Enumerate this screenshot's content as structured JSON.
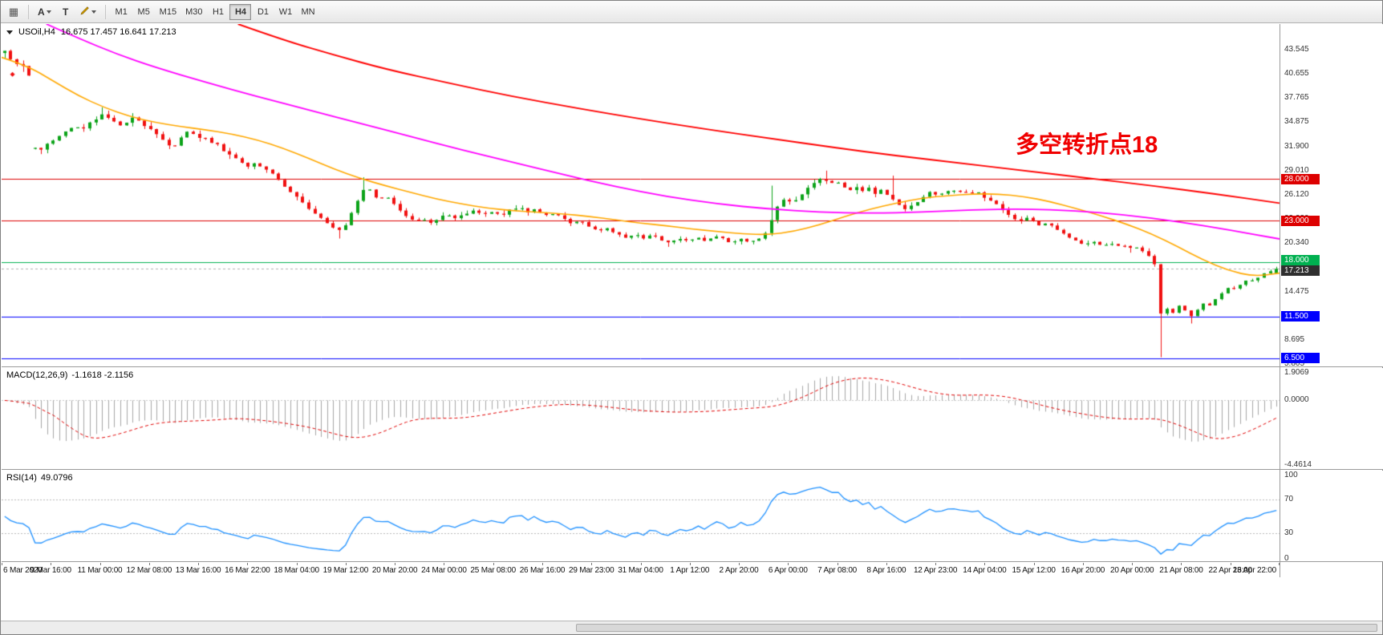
{
  "toolbar": {
    "tools": [
      {
        "label": "A"
      },
      {
        "label": "T"
      }
    ],
    "timeframes": [
      "M1",
      "M5",
      "M15",
      "M30",
      "H1",
      "H4",
      "D1",
      "W1",
      "MN"
    ],
    "active_timeframe": "H4"
  },
  "chart": {
    "title": {
      "symbol_period": "USOil,H4",
      "ohlc": "16.675 17.457 16.641 17.213"
    }
  },
  "chart_data": {
    "type": "candlestick",
    "symbol": "USOil",
    "period": "H4",
    "bars": 210,
    "last_ohlc": {
      "o": 16.675,
      "h": 17.457,
      "l": 16.641,
      "c": 17.213
    },
    "colors": {
      "up": "#0ca319",
      "down": "#f01010",
      "ma_red": "#ff0000",
      "ma_magenta": "#ff00ff",
      "ma_orange": "#ffa800",
      "macd_hist": "#a6a6a6",
      "macd_signal": "#e00000",
      "rsi": "#1e90ff",
      "level_red": "#dd0000",
      "level_green": "#00b050",
      "level_blue": "#0000ff",
      "current_tag": "#2f2f2f"
    },
    "price_axis": {
      "max": 46.6,
      "min": 5.4,
      "labels": [
        "43.545",
        "40.655",
        "37.765",
        "34.875",
        "31.900",
        "29.010",
        "26.120",
        "23.230",
        "20.340",
        "17.450",
        "14.475",
        "11.585",
        "8.695",
        "5.805"
      ]
    },
    "levels": [
      {
        "value": 28.0,
        "label": "28.000",
        "line_color": "#dd0000",
        "tag_bg": "#dd0000",
        "dashed": false
      },
      {
        "value": 23.0,
        "label": "23.000",
        "line_color": "#dd0000",
        "tag_bg": "#dd0000",
        "dashed": false
      },
      {
        "value": 18.0,
        "label": "18.000",
        "line_color": "#00b050",
        "tag_bg": "#00b050",
        "dashed": false
      },
      {
        "value": 17.213,
        "label": "17.213",
        "line_color": "#b0b0b0",
        "tag_bg": "#2f2f2f",
        "dashed": true
      },
      {
        "value": 11.5,
        "label": "11.500",
        "line_color": "#0000ff",
        "tag_bg": "#0000ff",
        "dashed": false
      },
      {
        "value": 6.5,
        "label": "6.500",
        "line_color": "#0000ff",
        "tag_bg": "#0000ff",
        "dashed": false
      }
    ],
    "gap_at": 0.023,
    "close_path": [
      [
        0.0,
        43.2
      ],
      [
        0.004,
        42.4
      ],
      [
        0.009,
        41.9
      ],
      [
        0.014,
        41.4
      ],
      [
        0.019,
        41.0
      ],
      [
        0.0215,
        31.9
      ],
      [
        0.026,
        31.4
      ],
      [
        0.031,
        31.9
      ],
      [
        0.036,
        32.4
      ],
      [
        0.042,
        33.1
      ],
      [
        0.048,
        33.7
      ],
      [
        0.054,
        34.3
      ],
      [
        0.06,
        33.9
      ],
      [
        0.066,
        34.6
      ],
      [
        0.072,
        35.2
      ],
      [
        0.078,
        35.8
      ],
      [
        0.084,
        35.1
      ],
      [
        0.09,
        34.4
      ],
      [
        0.096,
        34.9
      ],
      [
        0.102,
        35.4
      ],
      [
        0.108,
        34.7
      ],
      [
        0.114,
        34.1
      ],
      [
        0.12,
        33.3
      ],
      [
        0.126,
        32.4
      ],
      [
        0.132,
        31.6
      ],
      [
        0.137,
        32.7
      ],
      [
        0.142,
        33.8
      ],
      [
        0.148,
        33.5
      ],
      [
        0.154,
        33.0
      ],
      [
        0.16,
        32.7
      ],
      [
        0.166,
        32.2
      ],
      [
        0.172,
        31.5
      ],
      [
        0.178,
        30.8
      ],
      [
        0.184,
        30.2
      ],
      [
        0.19,
        29.5
      ],
      [
        0.196,
        29.9
      ],
      [
        0.202,
        29.5
      ],
      [
        0.208,
        28.9
      ],
      [
        0.214,
        28.1
      ],
      [
        0.22,
        27.2
      ],
      [
        0.226,
        26.4
      ],
      [
        0.232,
        25.6
      ],
      [
        0.238,
        24.7
      ],
      [
        0.244,
        23.8
      ],
      [
        0.25,
        23.1
      ],
      [
        0.256,
        22.4
      ],
      [
        0.262,
        21.7
      ],
      [
        0.268,
        22.5
      ],
      [
        0.274,
        24.3
      ],
      [
        0.279,
        25.9
      ],
      [
        0.284,
        27.2
      ],
      [
        0.289,
        26.3
      ],
      [
        0.294,
        25.6
      ],
      [
        0.299,
        26.0
      ],
      [
        0.305,
        25.2
      ],
      [
        0.311,
        24.3
      ],
      [
        0.317,
        23.5
      ],
      [
        0.323,
        22.8
      ],
      [
        0.329,
        23.3
      ],
      [
        0.335,
        22.7
      ],
      [
        0.341,
        23.2
      ],
      [
        0.348,
        23.8
      ],
      [
        0.355,
        23.3
      ],
      [
        0.362,
        23.8
      ],
      [
        0.369,
        24.2
      ],
      [
        0.376,
        23.7
      ],
      [
        0.383,
        24.1
      ],
      [
        0.39,
        23.6
      ],
      [
        0.397,
        24.2
      ],
      [
        0.404,
        24.7
      ],
      [
        0.411,
        24.0
      ],
      [
        0.418,
        24.4
      ],
      [
        0.425,
        23.6
      ],
      [
        0.432,
        23.9
      ],
      [
        0.439,
        23.2
      ],
      [
        0.446,
        22.6
      ],
      [
        0.453,
        23.0
      ],
      [
        0.46,
        22.3
      ],
      [
        0.467,
        21.7
      ],
      [
        0.474,
        22.1
      ],
      [
        0.481,
        21.4
      ],
      [
        0.488,
        21.0
      ],
      [
        0.495,
        21.4
      ],
      [
        0.502,
        20.9
      ],
      [
        0.509,
        21.3
      ],
      [
        0.516,
        20.7
      ],
      [
        0.523,
        20.3
      ],
      [
        0.53,
        20.9
      ],
      [
        0.537,
        20.5
      ],
      [
        0.544,
        21.0
      ],
      [
        0.551,
        20.6
      ],
      [
        0.558,
        21.1
      ],
      [
        0.565,
        20.8
      ],
      [
        0.572,
        20.3
      ],
      [
        0.579,
        20.8
      ],
      [
        0.586,
        20.4
      ],
      [
        0.593,
        20.9
      ],
      [
        0.599,
        21.5
      ],
      [
        0.604,
        23.6
      ],
      [
        0.609,
        25.0
      ],
      [
        0.614,
        25.6
      ],
      [
        0.619,
        25.1
      ],
      [
        0.624,
        25.8
      ],
      [
        0.629,
        26.6
      ],
      [
        0.634,
        27.3
      ],
      [
        0.639,
        27.9
      ],
      [
        0.644,
        28.2
      ],
      [
        0.649,
        27.4
      ],
      [
        0.654,
        27.9
      ],
      [
        0.659,
        27.2
      ],
      [
        0.664,
        26.6
      ],
      [
        0.669,
        27.1
      ],
      [
        0.674,
        26.5
      ],
      [
        0.679,
        26.9
      ],
      [
        0.684,
        26.3
      ],
      [
        0.689,
        26.7
      ],
      [
        0.694,
        26.1
      ],
      [
        0.699,
        25.5
      ],
      [
        0.704,
        24.9
      ],
      [
        0.709,
        24.3
      ],
      [
        0.714,
        24.8
      ],
      [
        0.719,
        25.5
      ],
      [
        0.724,
        26.1
      ],
      [
        0.729,
        26.5
      ],
      [
        0.734,
        26.0
      ],
      [
        0.739,
        26.4
      ],
      [
        0.744,
        26.8
      ],
      [
        0.749,
        26.3
      ],
      [
        0.754,
        26.7
      ],
      [
        0.759,
        26.2
      ],
      [
        0.764,
        26.5
      ],
      [
        0.769,
        26.0
      ],
      [
        0.774,
        25.5
      ],
      [
        0.779,
        25.0
      ],
      [
        0.784,
        24.4
      ],
      [
        0.789,
        23.8
      ],
      [
        0.794,
        23.3
      ],
      [
        0.799,
        22.9
      ],
      [
        0.804,
        23.3
      ],
      [
        0.809,
        22.8
      ],
      [
        0.814,
        22.4
      ],
      [
        0.819,
        22.8
      ],
      [
        0.824,
        22.2
      ],
      [
        0.829,
        21.8
      ],
      [
        0.834,
        21.3
      ],
      [
        0.839,
        20.9
      ],
      [
        0.844,
        20.5
      ],
      [
        0.849,
        20.1
      ],
      [
        0.854,
        20.5
      ],
      [
        0.859,
        20.2
      ],
      [
        0.864,
        19.9
      ],
      [
        0.869,
        20.3
      ],
      [
        0.874,
        19.9
      ],
      [
        0.879,
        20.2
      ],
      [
        0.884,
        19.6
      ],
      [
        0.889,
        19.9
      ],
      [
        0.894,
        19.4
      ],
      [
        0.899,
        18.9
      ],
      [
        0.904,
        18.2
      ],
      [
        0.9085,
        11.7
      ],
      [
        0.913,
        12.5
      ],
      [
        0.918,
        11.8
      ],
      [
        0.923,
        12.8
      ],
      [
        0.928,
        12.2
      ],
      [
        0.933,
        11.5
      ],
      [
        0.938,
        12.3
      ],
      [
        0.943,
        13.1
      ],
      [
        0.948,
        12.8
      ],
      [
        0.953,
        13.7
      ],
      [
        0.958,
        14.5
      ],
      [
        0.963,
        15.1
      ],
      [
        0.968,
        14.7
      ],
      [
        0.973,
        15.5
      ],
      [
        0.978,
        16.0
      ],
      [
        0.983,
        15.7
      ],
      [
        0.988,
        16.4
      ],
      [
        0.993,
        16.9
      ],
      [
        1.0,
        17.2
      ]
    ],
    "spikes": [
      {
        "frac": 0.078,
        "high": 36.6
      },
      {
        "frac": 0.102,
        "high": 35.9
      },
      {
        "frac": 0.262,
        "low": 20.85
      },
      {
        "frac": 0.284,
        "high": 28.2
      },
      {
        "frac": 0.523,
        "low": 19.85
      },
      {
        "frac": 0.604,
        "high": 27.2
      },
      {
        "frac": 0.644,
        "high": 29.0
      },
      {
        "frac": 0.699,
        "high": 28.4
      },
      {
        "frac": 0.887,
        "low": 19.15
      },
      {
        "frac": 0.9085,
        "low": 6.6
      },
      {
        "frac": 0.933,
        "low": 10.65
      }
    ],
    "overlays": {
      "red_ma": [
        [
          0.185,
          46.6
        ],
        [
          0.22,
          44.7
        ],
        [
          0.26,
          42.9
        ],
        [
          0.3,
          41.2
        ],
        [
          0.35,
          39.5
        ],
        [
          0.4,
          37.9
        ],
        [
          0.45,
          36.5
        ],
        [
          0.5,
          35.2
        ],
        [
          0.55,
          34.0
        ],
        [
          0.6,
          32.9
        ],
        [
          0.65,
          31.8
        ],
        [
          0.7,
          30.8
        ],
        [
          0.75,
          29.9
        ],
        [
          0.8,
          29.0
        ],
        [
          0.85,
          28.1
        ],
        [
          0.9,
          27.2
        ],
        [
          0.95,
          26.2
        ],
        [
          1.0,
          25.1
        ]
      ],
      "magenta_ma": [
        [
          0.035,
          46.6
        ],
        [
          0.06,
          44.9
        ],
        [
          0.09,
          43.0
        ],
        [
          0.12,
          41.4
        ],
        [
          0.16,
          39.6
        ],
        [
          0.2,
          37.9
        ],
        [
          0.24,
          36.3
        ],
        [
          0.28,
          34.7
        ],
        [
          0.32,
          33.1
        ],
        [
          0.36,
          31.5
        ],
        [
          0.4,
          30.0
        ],
        [
          0.44,
          28.5
        ],
        [
          0.48,
          27.1
        ],
        [
          0.52,
          25.9
        ],
        [
          0.56,
          25.0
        ],
        [
          0.6,
          24.4
        ],
        [
          0.64,
          24.0
        ],
        [
          0.68,
          23.9
        ],
        [
          0.72,
          24.0
        ],
        [
          0.76,
          24.3
        ],
        [
          0.8,
          24.4
        ],
        [
          0.84,
          24.2
        ],
        [
          0.88,
          23.7
        ],
        [
          0.92,
          22.9
        ],
        [
          0.96,
          21.9
        ],
        [
          1.0,
          20.8
        ]
      ],
      "orange_ma": [
        [
          0.0,
          42.6
        ],
        [
          0.02,
          41.6
        ],
        [
          0.04,
          39.8
        ],
        [
          0.06,
          38.0
        ],
        [
          0.08,
          36.6
        ],
        [
          0.1,
          35.5
        ],
        [
          0.12,
          34.8
        ],
        [
          0.14,
          34.3
        ],
        [
          0.16,
          33.9
        ],
        [
          0.18,
          33.4
        ],
        [
          0.2,
          32.7
        ],
        [
          0.22,
          31.7
        ],
        [
          0.24,
          30.5
        ],
        [
          0.26,
          29.2
        ],
        [
          0.28,
          28.1
        ],
        [
          0.3,
          27.2
        ],
        [
          0.32,
          26.4
        ],
        [
          0.34,
          25.6
        ],
        [
          0.36,
          25.0
        ],
        [
          0.38,
          24.5
        ],
        [
          0.4,
          24.2
        ],
        [
          0.42,
          24.0
        ],
        [
          0.44,
          23.8
        ],
        [
          0.46,
          23.5
        ],
        [
          0.48,
          23.1
        ],
        [
          0.5,
          22.7
        ],
        [
          0.52,
          22.4
        ],
        [
          0.54,
          22.0
        ],
        [
          0.56,
          21.7
        ],
        [
          0.58,
          21.4
        ],
        [
          0.6,
          21.3
        ],
        [
          0.62,
          21.7
        ],
        [
          0.64,
          22.5
        ],
        [
          0.66,
          23.5
        ],
        [
          0.68,
          24.4
        ],
        [
          0.7,
          25.1
        ],
        [
          0.72,
          25.7
        ],
        [
          0.74,
          26.0
        ],
        [
          0.76,
          26.2
        ],
        [
          0.78,
          26.2
        ],
        [
          0.8,
          25.9
        ],
        [
          0.82,
          25.3
        ],
        [
          0.84,
          24.5
        ],
        [
          0.86,
          23.6
        ],
        [
          0.88,
          22.6
        ],
        [
          0.9,
          21.4
        ],
        [
          0.92,
          19.9
        ],
        [
          0.94,
          18.3
        ],
        [
          0.96,
          17.0
        ],
        [
          0.98,
          16.3
        ],
        [
          1.0,
          16.7
        ]
      ]
    },
    "markers": [
      {
        "frac": 0.0085,
        "price": 40.55
      }
    ],
    "time_labels": [
      "6 Mar 2020",
      "9 Mar 16:00",
      "11 Mar 00:00",
      "12 Mar 08:00",
      "13 Mar 16:00",
      "16 Mar 22:00",
      "18 Mar 04:00",
      "19 Mar 12:00",
      "20 Mar 20:00",
      "24 Mar 00:00",
      "25 Mar 08:00",
      "26 Mar 16:00",
      "29 Mar 23:00",
      "31 Mar 04:00",
      "1 Apr 12:00",
      "2 Apr 20:00",
      "6 Apr 00:00",
      "7 Apr 08:00",
      "8 Apr 16:00",
      "12 Apr 23:00",
      "14 Apr 04:00",
      "15 Apr 12:00",
      "16 Apr 20:00",
      "20 Apr 00:00",
      "21 Apr 08:00",
      "22 Apr 16:00",
      "23 Apr 22:00"
    ],
    "macd": {
      "label": "MACD(12,26,9)",
      "values_text": "-1.1618 -2.1156",
      "fast": 12,
      "slow": 26,
      "signal": 9,
      "max": 1.9069,
      "min": -4.4614,
      "axis": [
        {
          "v": 1.9069,
          "t": "1.9069"
        },
        {
          "v": 0,
          "t": "0.0000"
        },
        {
          "v": -4.4614,
          "t": "-4.4614"
        }
      ]
    },
    "rsi": {
      "label": "RSI(14)",
      "value_text": "49.0796",
      "period": 14,
      "levels": [
        70,
        30
      ],
      "axis": [
        {
          "v": 100,
          "t": "100"
        },
        {
          "v": 70,
          "t": "70"
        },
        {
          "v": 30,
          "t": "30"
        },
        {
          "v": 0,
          "t": "0"
        }
      ]
    },
    "annotation": {
      "text": "多空转折点18",
      "color": "#f00000"
    }
  }
}
